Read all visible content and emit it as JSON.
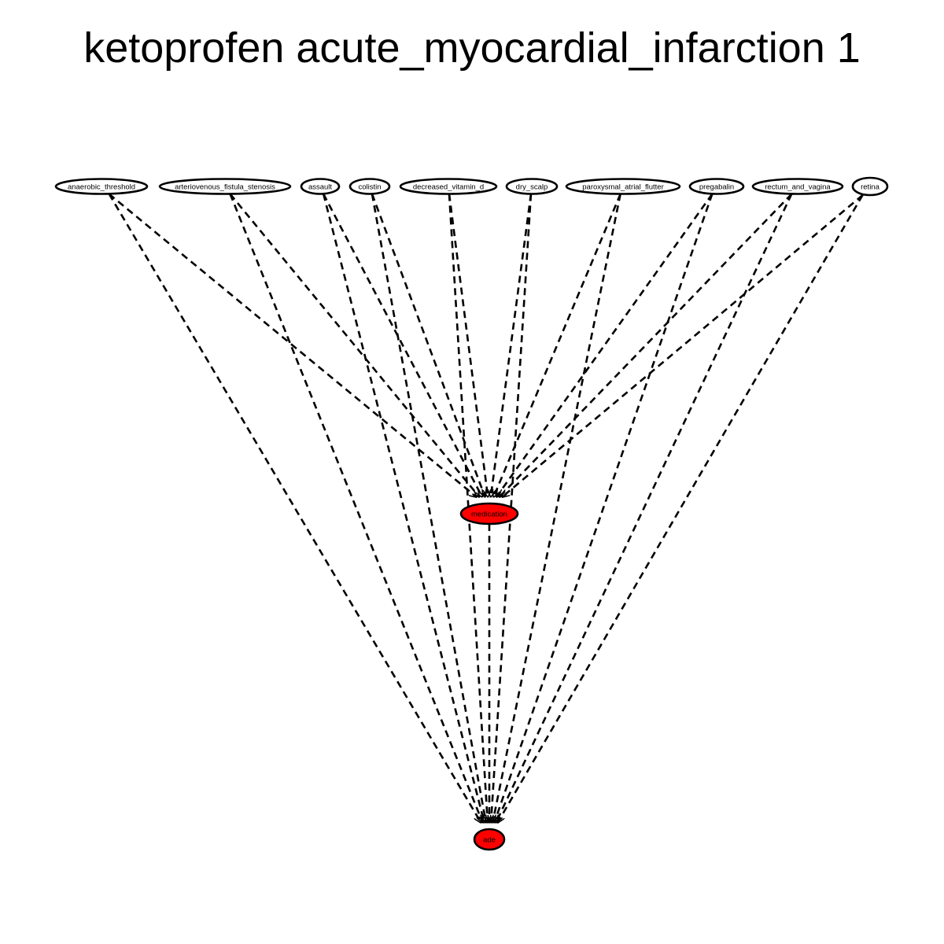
{
  "title": "ketoprofen acute_myocardial_infarction 1",
  "colors": {
    "outcome_fill": "#ff0000",
    "source_fill": "#ffffff",
    "stroke": "#000000"
  },
  "nodes": [
    {
      "id": "anaerobic_threshold",
      "label": "anaerobic_threshold",
      "role": "source"
    },
    {
      "id": "arteriovenous_fistula_stenosis",
      "label": "arteriovenous_fistula_stenosis",
      "role": "source"
    },
    {
      "id": "assault",
      "label": "assault",
      "role": "source"
    },
    {
      "id": "colistin",
      "label": "colistin",
      "role": "source"
    },
    {
      "id": "decreased_vitamin_d",
      "label": "decreased_vitamin_d",
      "role": "source"
    },
    {
      "id": "dry_scalp",
      "label": "dry_scalp",
      "role": "source"
    },
    {
      "id": "paroxysmal_atrial_flutter",
      "label": "paroxysmal_atrial_flutter",
      "role": "source"
    },
    {
      "id": "pregabalin",
      "label": "pregabalin",
      "role": "source"
    },
    {
      "id": "rectum_and_vagina",
      "label": "rectum_and_vagina",
      "role": "source"
    },
    {
      "id": "retina",
      "label": "retina",
      "role": "source"
    },
    {
      "id": "medication",
      "label": "medication",
      "role": "highlight"
    },
    {
      "id": "ade",
      "label": "ade",
      "role": "highlight"
    }
  ],
  "edges": [
    {
      "from": "anaerobic_threshold",
      "to": "medication",
      "style": "dashed"
    },
    {
      "from": "anaerobic_threshold",
      "to": "ade",
      "style": "dashed"
    },
    {
      "from": "arteriovenous_fistula_stenosis",
      "to": "medication",
      "style": "dashed"
    },
    {
      "from": "arteriovenous_fistula_stenosis",
      "to": "ade",
      "style": "dashed"
    },
    {
      "from": "assault",
      "to": "medication",
      "style": "dashed"
    },
    {
      "from": "assault",
      "to": "ade",
      "style": "dashed"
    },
    {
      "from": "colistin",
      "to": "medication",
      "style": "dashed"
    },
    {
      "from": "colistin",
      "to": "ade",
      "style": "dashed"
    },
    {
      "from": "decreased_vitamin_d",
      "to": "medication",
      "style": "dashed"
    },
    {
      "from": "decreased_vitamin_d",
      "to": "ade",
      "style": "dashed"
    },
    {
      "from": "dry_scalp",
      "to": "medication",
      "style": "dashed"
    },
    {
      "from": "dry_scalp",
      "to": "ade",
      "style": "dashed"
    },
    {
      "from": "paroxysmal_atrial_flutter",
      "to": "medication",
      "style": "dashed"
    },
    {
      "from": "paroxysmal_atrial_flutter",
      "to": "ade",
      "style": "dashed"
    },
    {
      "from": "pregabalin",
      "to": "medication",
      "style": "dashed"
    },
    {
      "from": "pregabalin",
      "to": "ade",
      "style": "dashed"
    },
    {
      "from": "rectum_and_vagina",
      "to": "medication",
      "style": "dashed"
    },
    {
      "from": "rectum_and_vagina",
      "to": "ade",
      "style": "dashed"
    },
    {
      "from": "retina",
      "to": "medication",
      "style": "dashed"
    },
    {
      "from": "retina",
      "to": "ade",
      "style": "dashed"
    },
    {
      "from": "medication",
      "to": "ade",
      "style": "dashed"
    }
  ]
}
